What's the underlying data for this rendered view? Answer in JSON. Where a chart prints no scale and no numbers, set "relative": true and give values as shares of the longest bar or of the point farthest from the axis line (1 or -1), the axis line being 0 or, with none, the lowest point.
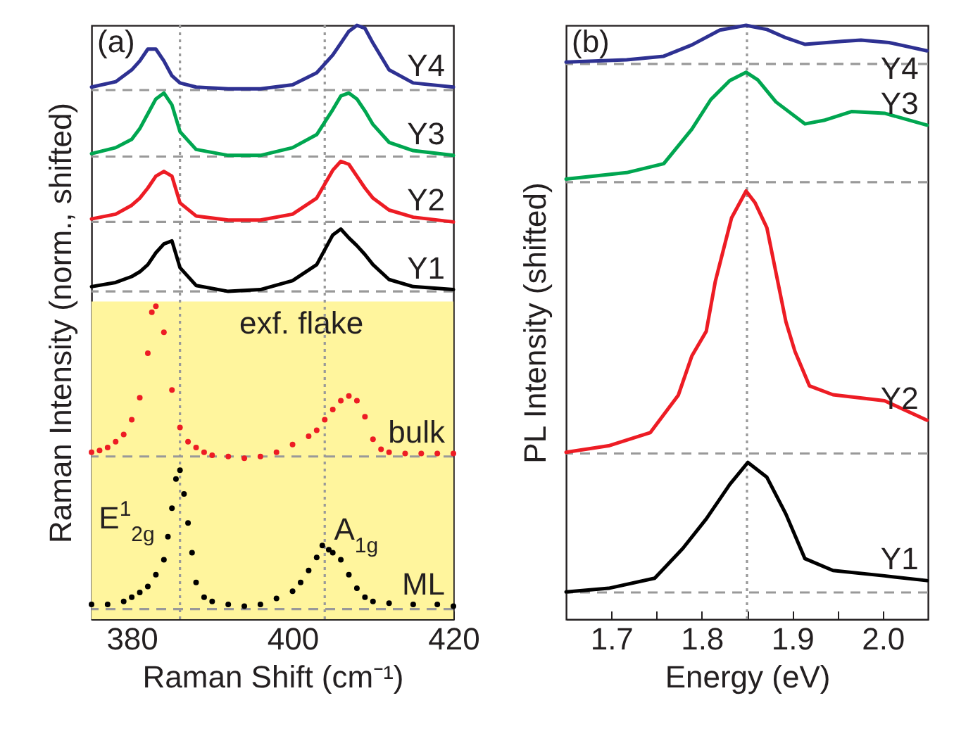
{
  "chart_data": [
    {
      "type": "line",
      "title": "(a)",
      "xlabel": "Raman Shift (cm⁻¹)",
      "ylabel": "Raman Intensity (norm., shifted)",
      "relative": true,
      "xlim": [
        375,
        420
      ],
      "xticks": [
        380,
        {
          "value": 390,
          "label": null
        },
        400,
        {
          "value": 410,
          "label": null
        },
        420
      ],
      "series": [
        {
          "name": "Y4",
          "color": "#2e3192",
          "x": [
            375,
            378,
            380,
            381,
            382,
            383,
            384,
            385,
            386,
            388,
            392,
            396,
            400,
            403,
            405,
            406,
            407,
            408,
            409,
            410,
            412,
            415,
            420
          ],
          "values": [
            0.896,
            0.905,
            0.925,
            0.94,
            0.96,
            0.96,
            0.94,
            0.915,
            0.903,
            0.896,
            0.893,
            0.893,
            0.9,
            0.92,
            0.95,
            0.97,
            0.99,
            1.0,
            0.995,
            0.97,
            0.925,
            0.903,
            0.896
          ]
        },
        {
          "name": "Y3",
          "color": "#00a650",
          "x": [
            375,
            378,
            380,
            381,
            382,
            383,
            384,
            385,
            386,
            388,
            392,
            396,
            400,
            403,
            405,
            406,
            407,
            408,
            409,
            410,
            412,
            415,
            420
          ],
          "values": [
            0.784,
            0.794,
            0.808,
            0.826,
            0.851,
            0.876,
            0.886,
            0.866,
            0.821,
            0.791,
            0.781,
            0.781,
            0.794,
            0.816,
            0.858,
            0.881,
            0.886,
            0.876,
            0.856,
            0.833,
            0.803,
            0.789,
            0.781
          ]
        },
        {
          "name": "Y2",
          "color": "#ed1c24",
          "x": [
            375,
            378,
            380,
            381,
            382,
            383,
            384,
            385,
            386,
            388,
            392,
            396,
            400,
            403,
            405,
            406,
            407,
            408,
            409,
            410,
            412,
            415,
            420
          ],
          "values": [
            0.674,
            0.682,
            0.697,
            0.709,
            0.726,
            0.746,
            0.754,
            0.746,
            0.701,
            0.679,
            0.672,
            0.672,
            0.682,
            0.709,
            0.756,
            0.771,
            0.766,
            0.746,
            0.726,
            0.709,
            0.689,
            0.677,
            0.669
          ]
        },
        {
          "name": "Y1",
          "color": "#000000",
          "x": [
            375,
            378,
            380,
            381,
            382,
            383,
            384,
            385,
            386,
            388,
            392,
            396,
            400,
            403,
            405,
            406,
            407,
            408,
            409,
            410,
            412,
            415,
            420
          ],
          "values": [
            0.56,
            0.567,
            0.577,
            0.585,
            0.597,
            0.617,
            0.632,
            0.637,
            0.592,
            0.562,
            0.552,
            0.555,
            0.57,
            0.597,
            0.647,
            0.657,
            0.642,
            0.629,
            0.614,
            0.597,
            0.572,
            0.56,
            0.555
          ]
        },
        {
          "name": "bulk",
          "type": "scatter",
          "color": "#ed1c24",
          "x": [
            375,
            376,
            377,
            378,
            379,
            380,
            381,
            382,
            382.5,
            383,
            384,
            385,
            386,
            387,
            388,
            389,
            390,
            392,
            394,
            396,
            398,
            400,
            402,
            403,
            404,
            405,
            406,
            407,
            408,
            409,
            410,
            411,
            412,
            414,
            416,
            418,
            420
          ],
          "values": [
            0.281,
            0.284,
            0.289,
            0.299,
            0.311,
            0.336,
            0.373,
            0.448,
            0.517,
            0.527,
            0.483,
            0.386,
            0.323,
            0.299,
            0.289,
            0.281,
            0.276,
            0.274,
            0.271,
            0.274,
            0.281,
            0.294,
            0.308,
            0.318,
            0.336,
            0.353,
            0.368,
            0.376,
            0.368,
            0.341,
            0.303,
            0.286,
            0.281,
            0.279,
            0.279,
            0.279,
            0.279
          ]
        },
        {
          "name": "ML",
          "type": "scatter",
          "color": "#000000",
          "x": [
            375,
            377,
            379,
            380,
            381,
            382,
            383,
            384,
            384.5,
            385,
            385.5,
            386,
            386.5,
            387,
            387.5,
            388,
            389,
            390,
            392,
            394,
            396,
            398,
            400,
            401,
            402,
            403,
            403.7,
            404.5,
            405,
            406,
            407,
            408,
            409,
            410,
            412,
            415,
            418,
            420
          ],
          "values": [
            0.025,
            0.025,
            0.03,
            0.037,
            0.045,
            0.055,
            0.075,
            0.1,
            0.139,
            0.187,
            0.236,
            0.251,
            0.211,
            0.162,
            0.112,
            0.062,
            0.037,
            0.03,
            0.025,
            0.022,
            0.025,
            0.035,
            0.047,
            0.062,
            0.082,
            0.104,
            0.124,
            0.117,
            0.112,
            0.1,
            0.075,
            0.052,
            0.037,
            0.03,
            0.027,
            0.025,
            0.025,
            0.022
          ]
        }
      ],
      "ref_lines": [
        {
          "axis": "x",
          "value": 386,
          "color": "#999999",
          "line_style": "dotted"
        },
        {
          "axis": "x",
          "value": 404,
          "color": "#999999",
          "line_style": "dotted"
        },
        {
          "axis": "y",
          "value": 0.891,
          "color": "#999999",
          "line_style": "dashed"
        },
        {
          "axis": "y",
          "value": 0.779,
          "color": "#999999",
          "line_style": "dashed"
        },
        {
          "axis": "y",
          "value": 0.669,
          "color": "#999999",
          "line_style": "dashed"
        },
        {
          "axis": "y",
          "value": 0.552,
          "color": "#999999",
          "line_style": "dashed"
        },
        {
          "axis": "y",
          "value": 0.274,
          "color": "#999999",
          "line_style": "dashed"
        },
        {
          "axis": "y",
          "value": 0.017,
          "color": "#999999",
          "line_style": "dashed"
        }
      ],
      "bands": [
        {
          "axis": "y",
          "from": 0,
          "to": 0.535,
          "label": "exf. flake",
          "color": "#fff59d"
        }
      ],
      "annotations": [
        "E$^{1}$$_{2g}$",
        "A$_{1g}$"
      ]
    },
    {
      "type": "line",
      "title": "(b)",
      "xlabel": "Energy (eV)",
      "ylabel": "PL Intensity (shifted)",
      "relative": true,
      "xlim": [
        1.65,
        2.05
      ],
      "xticks": [
        1.7,
        {
          "value": 1.75,
          "label": null
        },
        1.8,
        {
          "value": 1.85,
          "label": null
        },
        1.9,
        {
          "value": 1.95,
          "label": null
        },
        {
          "value": 2,
          "label": "2.0"
        }
      ],
      "series": [
        {
          "name": "Y4",
          "color": "#2e3192",
          "x": [
            1.65,
            1.717,
            1.758,
            1.789,
            1.82,
            1.849,
            1.872,
            1.893,
            1.914,
            1.955,
            1.976,
            2.007,
            2.049
          ],
          "values": [
            0.938,
            0.942,
            0.948,
            0.967,
            0.992,
            1.0,
            0.993,
            0.979,
            0.968,
            0.973,
            0.975,
            0.971,
            0.957
          ]
        },
        {
          "name": "Y3",
          "color": "#00a650",
          "x": [
            1.65,
            1.717,
            1.758,
            1.789,
            1.81,
            1.831,
            1.849,
            1.862,
            1.882,
            1.914,
            1.935,
            1.966,
            2.002,
            2.049
          ],
          "values": [
            0.741,
            0.752,
            0.767,
            0.825,
            0.875,
            0.907,
            0.921,
            0.908,
            0.871,
            0.834,
            0.84,
            0.855,
            0.852,
            0.832
          ]
        },
        {
          "name": "Y2",
          "color": "#ed1c24",
          "x": [
            1.65,
            1.697,
            1.743,
            1.774,
            1.789,
            1.805,
            1.815,
            1.833,
            1.849,
            1.859,
            1.872,
            1.893,
            1.903,
            1.919,
            1.945,
            2.002,
            2.049
          ],
          "values": [
            0.281,
            0.292,
            0.314,
            0.377,
            0.443,
            0.485,
            0.569,
            0.676,
            0.721,
            0.701,
            0.659,
            0.501,
            0.451,
            0.393,
            0.378,
            0.368,
            0.335
          ]
        },
        {
          "name": "Y1",
          "color": "#000000",
          "x": [
            1.65,
            1.697,
            1.748,
            1.779,
            1.805,
            1.831,
            1.851,
            1.872,
            1.893,
            1.914,
            1.945,
            2.002,
            2.049
          ],
          "values": [
            0.046,
            0.052,
            0.069,
            0.119,
            0.169,
            0.227,
            0.264,
            0.239,
            0.177,
            0.102,
            0.082,
            0.073,
            0.065
          ]
        }
      ],
      "ref_lines": [
        {
          "axis": "x",
          "value": 1.85,
          "color": "#999999",
          "line_style": "dotted"
        },
        {
          "axis": "y",
          "value": 0.935,
          "color": "#999999",
          "line_style": "dashed"
        },
        {
          "axis": "y",
          "value": 0.736,
          "color": "#999999",
          "line_style": "dashed"
        },
        {
          "axis": "y",
          "value": 0.279,
          "color": "#999999",
          "line_style": "dashed"
        },
        {
          "axis": "y",
          "value": 0.045,
          "color": "#999999",
          "line_style": "dashed"
        }
      ]
    }
  ]
}
